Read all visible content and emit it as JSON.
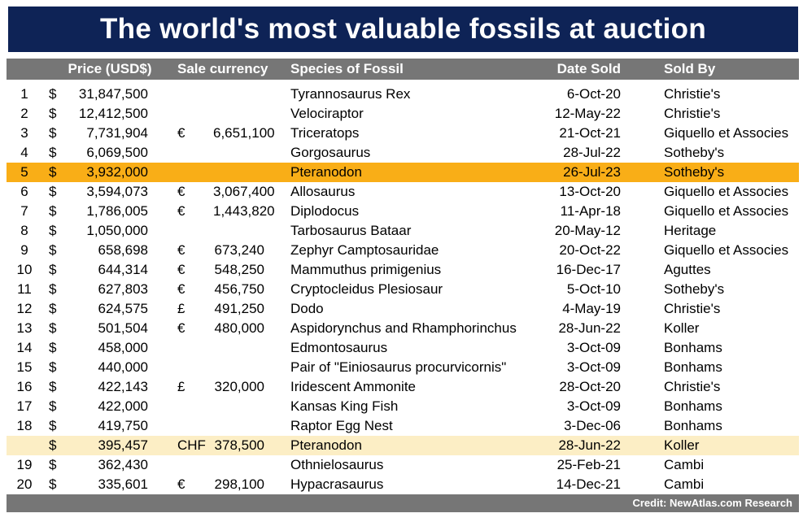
{
  "colors": {
    "title_band": "#0E2356",
    "bars": "#767676",
    "highlight_orange": "#F9AE17",
    "highlight_yellow": "#FCEEC5"
  },
  "chart_data": {
    "type": "table",
    "title": "The world's most valuable fossils at auction",
    "credit": "Credit: NewAtlas.com Research",
    "columns": {
      "price": "Price (USD$)",
      "currency": "Sale currency",
      "species": "Species of Fossil",
      "date": "Date Sold",
      "sold_by": "Sold By"
    },
    "rows": [
      {
        "rank": "1",
        "dollar": "$",
        "usd": "31,847,500",
        "cur_sym": "",
        "cur_val": "",
        "species": "Tyrannosaurus Rex",
        "date": "6-Oct-20",
        "seller": "Christie's"
      },
      {
        "rank": "2",
        "dollar": "$",
        "usd": "12,412,500",
        "cur_sym": "",
        "cur_val": "",
        "species": "Velociraptor",
        "date": "12-May-22",
        "seller": "Christie's"
      },
      {
        "rank": "3",
        "dollar": "$",
        "usd": "7,731,904",
        "cur_sym": "€",
        "cur_val": "6,651,100",
        "species": "Triceratops",
        "date": "21-Oct-21",
        "seller": "Giquello et Associes"
      },
      {
        "rank": "4",
        "dollar": "$",
        "usd": "6,069,500",
        "cur_sym": "",
        "cur_val": "",
        "species": "Gorgosaurus",
        "date": "28-Jul-22",
        "seller": "Sotheby's"
      },
      {
        "rank": "5",
        "dollar": "$",
        "usd": "3,932,000",
        "cur_sym": "",
        "cur_val": "",
        "species": "Pteranodon",
        "date": "26-Jul-23",
        "seller": "Sotheby's",
        "highlight": "orange"
      },
      {
        "rank": "6",
        "dollar": "$",
        "usd": "3,594,073",
        "cur_sym": "€",
        "cur_val": "3,067,400",
        "species": "Allosaurus",
        "date": "13-Oct-20",
        "seller": "Giquello et Associes"
      },
      {
        "rank": "7",
        "dollar": "$",
        "usd": "1,786,005",
        "cur_sym": "€",
        "cur_val": "1,443,820",
        "species": "Diplodocus",
        "date": "11-Apr-18",
        "seller": "Giquello et Associes"
      },
      {
        "rank": "8",
        "dollar": "$",
        "usd": "1,050,000",
        "cur_sym": "",
        "cur_val": "",
        "species": "Tarbosaurus Bataar",
        "date": "20-May-12",
        "seller": "Heritage"
      },
      {
        "rank": "9",
        "dollar": "$",
        "usd": "658,698",
        "cur_sym": "€",
        "cur_val": "673,240",
        "species": "Zephyr Camptosauridae",
        "date": "20-Oct-22",
        "seller": "Giquello et Associes"
      },
      {
        "rank": "10",
        "dollar": "$",
        "usd": "644,314",
        "cur_sym": "€",
        "cur_val": "548,250",
        "species": "Mammuthus primigenius",
        "date": "16-Dec-17",
        "seller": "Aguttes"
      },
      {
        "rank": "11",
        "dollar": "$",
        "usd": "627,803",
        "cur_sym": "€",
        "cur_val": "456,750",
        "species": "Cryptocleidus Plesiosaur",
        "date": "5-Oct-10",
        "seller": "Sotheby's"
      },
      {
        "rank": "12",
        "dollar": "$",
        "usd": "624,575",
        "cur_sym": "£",
        "cur_val": "491,250",
        "species": "Dodo",
        "date": "4-May-19",
        "seller": "Christie's"
      },
      {
        "rank": "13",
        "dollar": "$",
        "usd": "501,504",
        "cur_sym": "€",
        "cur_val": "480,000",
        "species": "Aspidorynchus and Rhamphorinchus",
        "date": "28-Jun-22",
        "seller": "Koller"
      },
      {
        "rank": "14",
        "dollar": "$",
        "usd": "458,000",
        "cur_sym": "",
        "cur_val": "",
        "species": "Edmontosaurus",
        "date": "3-Oct-09",
        "seller": "Bonhams"
      },
      {
        "rank": "15",
        "dollar": "$",
        "usd": "440,000",
        "cur_sym": "",
        "cur_val": "",
        "species": "Pair of \"Einiosaurus procurvicornis\"",
        "date": "3-Oct-09",
        "seller": "Bonhams"
      },
      {
        "rank": "16",
        "dollar": "$",
        "usd": "422,143",
        "cur_sym": "£",
        "cur_val": "320,000",
        "species": "Iridescent Ammonite",
        "date": "28-Oct-20",
        "seller": "Christie's"
      },
      {
        "rank": "17",
        "dollar": "$",
        "usd": "422,000",
        "cur_sym": "",
        "cur_val": "",
        "species": "Kansas King Fish",
        "date": "3-Oct-09",
        "seller": "Bonhams"
      },
      {
        "rank": "18",
        "dollar": "$",
        "usd": "419,750",
        "cur_sym": "",
        "cur_val": "",
        "species": "Raptor Egg Nest",
        "date": "3-Dec-06",
        "seller": "Bonhams"
      },
      {
        "rank": "",
        "dollar": "$",
        "usd": "395,457",
        "cur_sym": "CHF",
        "cur_val": "378,500",
        "species": "Pteranodon",
        "date": "28-Jun-22",
        "seller": "Koller",
        "highlight": "yellow"
      },
      {
        "rank": "19",
        "dollar": "$",
        "usd": "362,430",
        "cur_sym": "",
        "cur_val": "",
        "species": "Othnielosaurus",
        "date": "25-Feb-21",
        "seller": "Cambi"
      },
      {
        "rank": "20",
        "dollar": "$",
        "usd": "335,601",
        "cur_sym": "€",
        "cur_val": "298,100",
        "species": "Hypacrasaurus",
        "date": "14-Dec-21",
        "seller": "Cambi"
      }
    ]
  }
}
